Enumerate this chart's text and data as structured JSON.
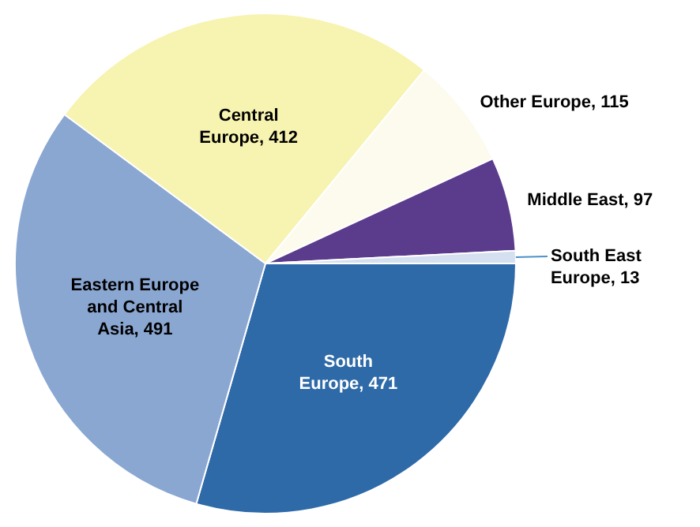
{
  "chart_data": {
    "type": "pie",
    "categories": [
      "South Europe",
      "Eastern Europe and Central Asia",
      "Central Europe",
      "Other Europe",
      "Middle East",
      "South East Europe"
    ],
    "values": [
      471,
      491,
      412,
      115,
      97,
      13
    ],
    "value_labels": [
      ", 471",
      ", 491",
      ", 412",
      ", 115",
      ", 97",
      ", 13"
    ],
    "colors": [
      "#2e69a8",
      "#8aa7d2",
      "#f7f3b0",
      "#fcfbee",
      "#5b3b8c",
      "#d4e0f0"
    ],
    "legend": false
  }
}
